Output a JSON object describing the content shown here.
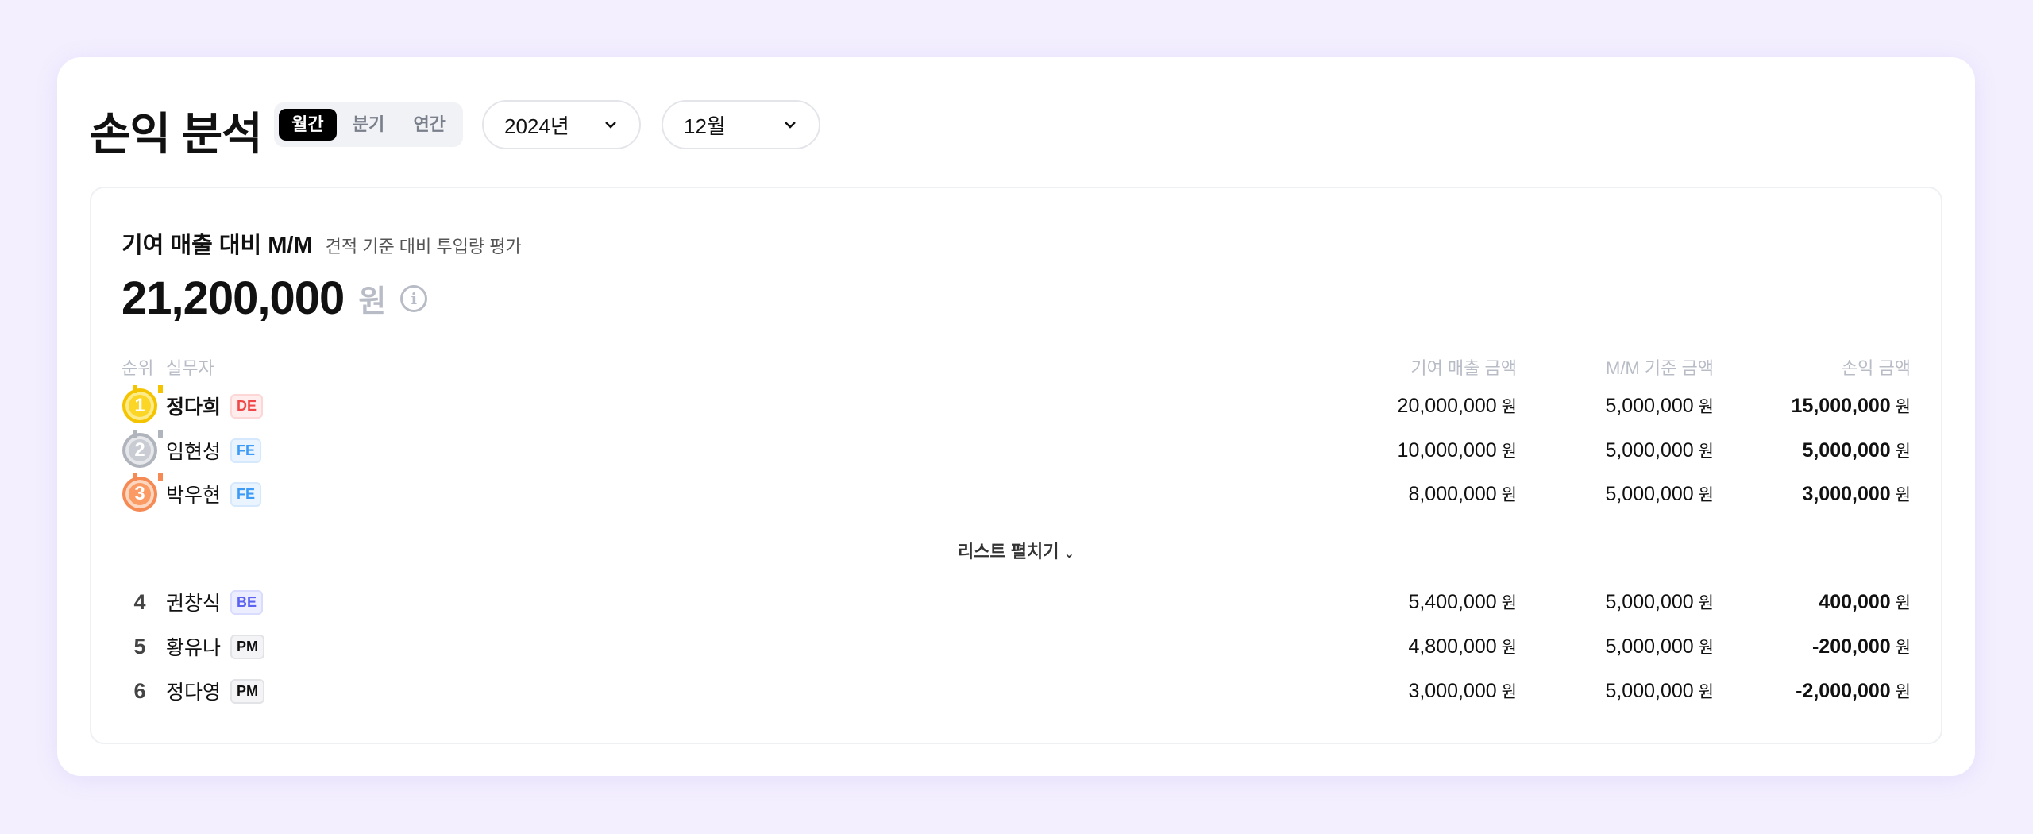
{
  "title": "손익 분석",
  "period_tabs": [
    "월간",
    "분기",
    "연간"
  ],
  "active_period": "월간",
  "year": "2024년",
  "month": "12월",
  "section": {
    "title": "기여 매출 대비 M/M",
    "subtitle": "견적 기준 대비 투입량 평가",
    "total": "21,200,000",
    "unit": "원",
    "info_icon": "info-icon"
  },
  "columns": {
    "rank": "순위",
    "name": "실무자",
    "revenue": "기여 매출 금액",
    "mm": "M/M 기준 금액",
    "profit": "손익 금액"
  },
  "won": "원",
  "expand_label": "리스트 펼치기",
  "rows": [
    {
      "rank": "1",
      "name": "정다희",
      "role": "DE",
      "revenue": "20,000,000",
      "mm": "5,000,000",
      "profit": "15,000,000"
    },
    {
      "rank": "2",
      "name": "임현성",
      "role": "FE",
      "revenue": "10,000,000",
      "mm": "5,000,000",
      "profit": "5,000,000"
    },
    {
      "rank": "3",
      "name": "박우현",
      "role": "FE",
      "revenue": "8,000,000",
      "mm": "5,000,000",
      "profit": "3,000,000"
    },
    {
      "rank": "4",
      "name": "권창식",
      "role": "BE",
      "revenue": "5,400,000",
      "mm": "5,000,000",
      "profit": "400,000"
    },
    {
      "rank": "5",
      "name": "황유나",
      "role": "PM",
      "revenue": "4,800,000",
      "mm": "5,000,000",
      "profit": "-200,000"
    },
    {
      "rank": "6",
      "name": "정다영",
      "role": "PM",
      "revenue": "3,000,000",
      "mm": "5,000,000",
      "profit": "-2,000,000"
    }
  ],
  "colors": {
    "background": "#f3effe",
    "gold": "#fcd626",
    "silver": "#c9ccd3",
    "bronze": "#fb9a63",
    "DE": "#f04848",
    "FE": "#3d9bf5",
    "BE": "#5b63f0",
    "PM": "#111111"
  }
}
